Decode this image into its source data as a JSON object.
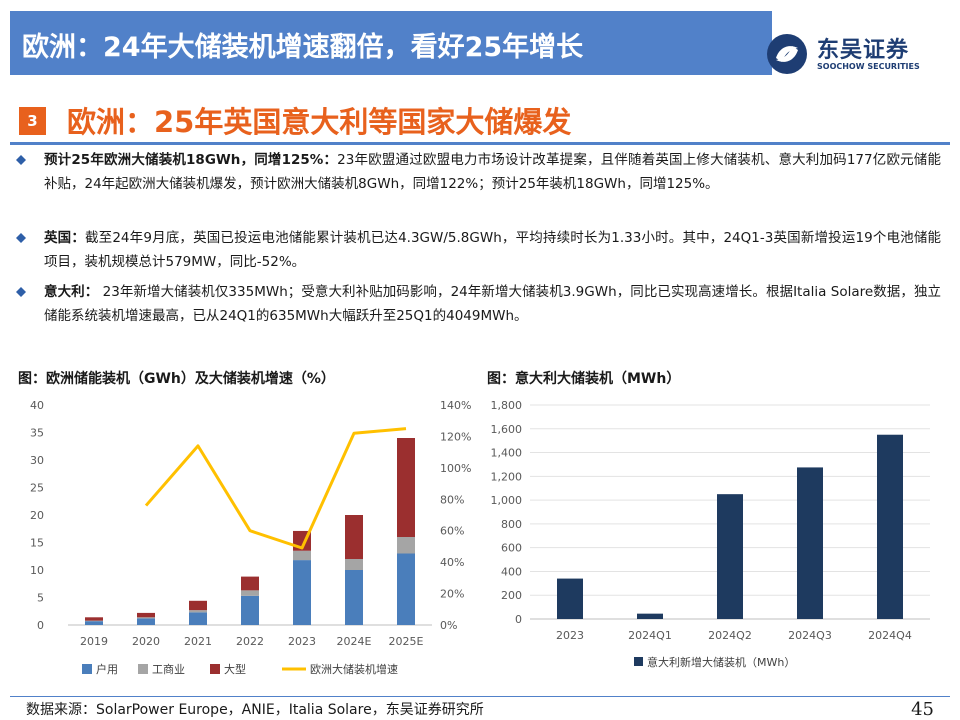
{
  "header": {
    "title": "欧洲：24年大储装机增速翻倍，看好25年增长",
    "logo_cn": "东吴证券",
    "logo_en": "SOOCHOW SECURITIES"
  },
  "section": {
    "number": "3",
    "title": "欧洲：25年英国意大利等国家大储爆发"
  },
  "bullets": [
    {
      "bold": "预计25年欧洲大储装机18GWh，同增125%：",
      "text": "23年欧盟通过欧盟电力市场设计改革提案，且伴随着英国上修大储装机、意大利加码177亿欧元储能补贴，24年起欧洲大储装机爆发，预计欧洲大储装机8GWh，同增122%；预计25年装机18GWh，同增125%。"
    },
    {
      "bold": "英国：",
      "text": "截至24年9月底，英国已投运电池储能累计装机已达4.3GW/5.8GWh，平均持续时长为1.33小时。其中，24Q1-3英国新增投运19个电池储能项目，装机规模总计579MW，同比-52%。"
    },
    {
      "bold": "意大利：",
      "text": " 23年新增大储装机仅335MWh；受意大利补贴加码影响，24年新增大储装机3.9GWh，同比已实现高速增长。根据Italia Solare数据，独立储能系统装机增速最高，已从24Q1的635MWh大幅跃升至25Q1的4049MWh。"
    }
  ],
  "colors": {
    "header_bg": "#5181c9",
    "accent_orange": "#e8611d",
    "household": "#4a7ebb",
    "commercial": "#a5a5a5",
    "utility": "#9b2f2f",
    "growth_line": "#ffc000",
    "italy_bar": "#1e3a5f"
  },
  "chart_data": [
    {
      "type": "bar",
      "title": "图：欧洲储能装机（GWh）及大储装机增速（%）",
      "stacked": true,
      "categories": [
        "2019",
        "2020",
        "2021",
        "2022",
        "2023",
        "2024E",
        "2025E"
      ],
      "series": [
        {
          "name": "户用",
          "axis": "left",
          "values": [
            0.7,
            1.2,
            2.3,
            5.3,
            11.8,
            10.0,
            13.0
          ]
        },
        {
          "name": "工商业",
          "axis": "left",
          "values": [
            0.1,
            0.2,
            0.4,
            1.0,
            1.7,
            2.0,
            3.0
          ]
        },
        {
          "name": "大型",
          "axis": "left",
          "values": [
            0.6,
            0.8,
            1.7,
            2.5,
            3.6,
            8.0,
            18.0
          ]
        },
        {
          "name": "欧洲大储装机增速",
          "type": "line",
          "axis": "right",
          "values": [
            null,
            0.76,
            1.14,
            0.6,
            0.49,
            1.22,
            1.25
          ]
        }
      ],
      "ylim": [
        0,
        40
      ],
      "yticks": [
        "0",
        "5",
        "10",
        "15",
        "20",
        "25",
        "30",
        "35",
        "40"
      ],
      "y2lim": [
        0,
        1.4
      ],
      "y2ticks": [
        "0%",
        "20%",
        "40%",
        "60%",
        "80%",
        "100%",
        "120%",
        "140%"
      ],
      "legend": "bottom",
      "grid": false
    },
    {
      "type": "bar",
      "title": "图：意大利大储装机（MWh）",
      "categories": [
        "2023",
        "2024Q1",
        "2024Q2",
        "2024Q3",
        "2024Q4"
      ],
      "series": [
        {
          "name": "意大利新增大储装机（MWh）",
          "values": [
            340,
            45,
            1050,
            1275,
            1550
          ]
        }
      ],
      "ylim": [
        0,
        1800
      ],
      "yticks": [
        "0",
        "200",
        "400",
        "600",
        "800",
        "1,000",
        "1,200",
        "1,400",
        "1,600",
        "1,800"
      ],
      "legend": "bottom",
      "grid": true
    }
  ],
  "footer": {
    "source": "数据来源：SolarPower Europe，ANIE，Italia Solare，东吴证券研究所",
    "page": "45"
  }
}
